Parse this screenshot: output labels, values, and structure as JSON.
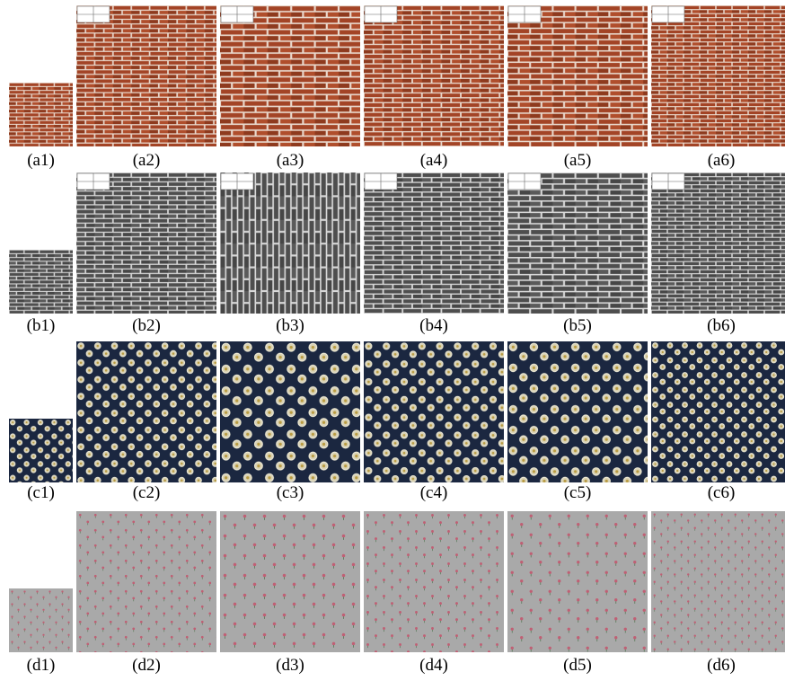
{
  "figure": {
    "rows": [
      {
        "labels": [
          "(a1)",
          "(a2)",
          "(a3)",
          "(a4)",
          "(a5)",
          "(a6)"
        ]
      },
      {
        "labels": [
          "(b1)",
          "(b2)",
          "(b3)",
          "(b4)",
          "(b5)",
          "(b6)"
        ]
      },
      {
        "labels": [
          "(c1)",
          "(c2)",
          "(c3)",
          "(c4)",
          "(c5)",
          "(c6)"
        ]
      },
      {
        "labels": [
          "(d1)",
          "(d2)",
          "(d3)",
          "(d4)",
          "(d5)",
          "(d6)"
        ]
      }
    ]
  }
}
